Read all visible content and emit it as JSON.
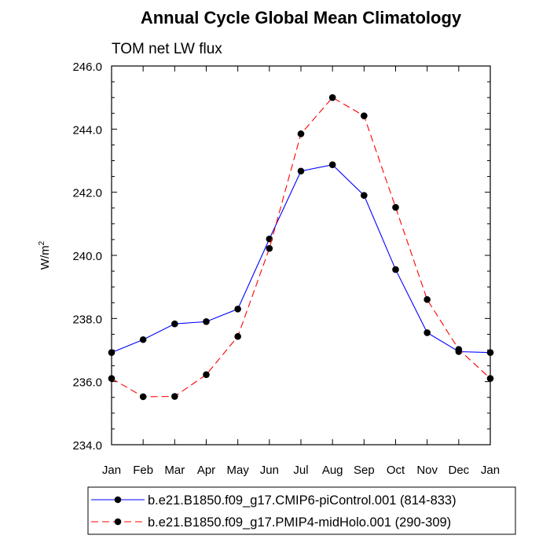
{
  "chart_data": {
    "type": "line",
    "title": "Annual Cycle Global Mean Climatology",
    "subtitle": "TOM net LW flux",
    "ylabel": "W/m",
    "ylabel_superscript": "2",
    "xlabel": "",
    "categories": [
      "Jan",
      "Feb",
      "Mar",
      "Apr",
      "May",
      "Jun",
      "Jul",
      "Aug",
      "Sep",
      "Oct",
      "Nov",
      "Dec",
      "Jan"
    ],
    "ylim": [
      234.0,
      246.0
    ],
    "yticks": [
      "234.0",
      "236.0",
      "238.0",
      "240.0",
      "242.0",
      "244.0",
      "246.0"
    ],
    "grid": false,
    "legend_placement": "bottom",
    "series": [
      {
        "name": "b.e21.B1850.f09_g17.CMIP6-piControl.001 (814-833)",
        "color": "#0000ff",
        "dash": "solid",
        "values": [
          236.92,
          237.33,
          237.83,
          237.9,
          238.3,
          240.52,
          242.67,
          242.87,
          241.9,
          239.55,
          237.55,
          236.95,
          236.92
        ]
      },
      {
        "name": "b.e21.B1850.f09_g17.PMIP4-midHolo.001 (290-309)",
        "color": "#ff0000",
        "dash": "dashed",
        "values": [
          236.1,
          235.52,
          235.53,
          236.22,
          237.43,
          240.22,
          243.85,
          245.0,
          244.42,
          241.52,
          238.6,
          237.02,
          236.1
        ]
      }
    ]
  }
}
